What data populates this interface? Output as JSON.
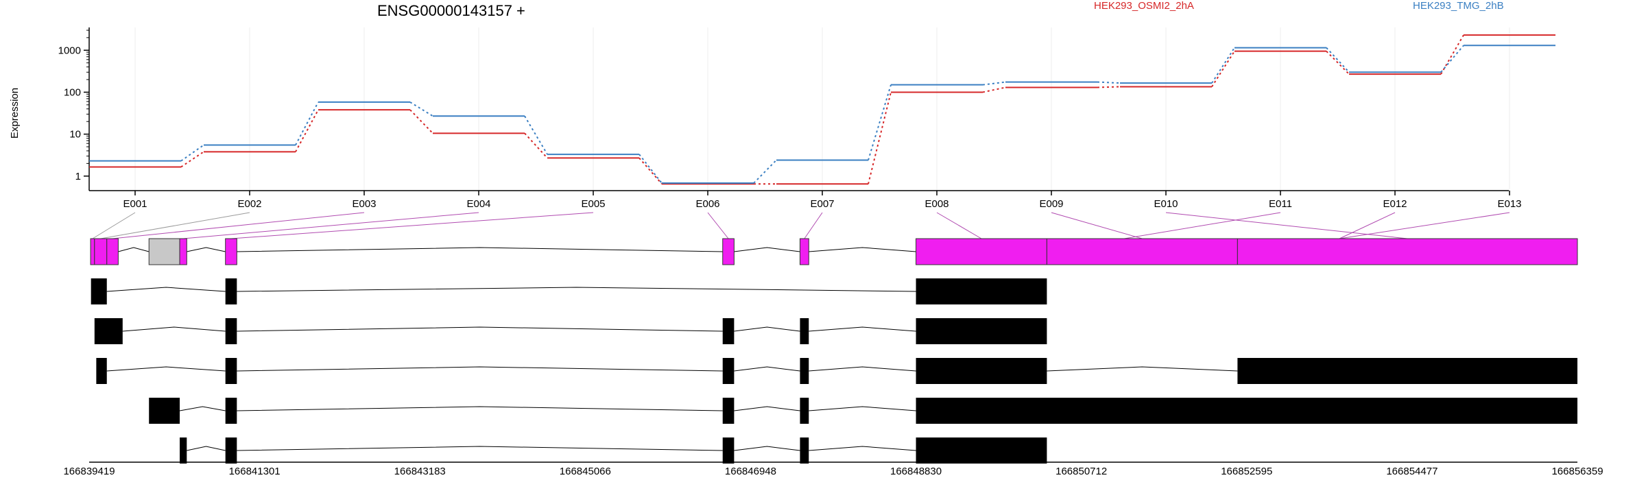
{
  "chart_data": {
    "type": "line",
    "title": "ENSG00000143157 +",
    "ylabel": "Expression",
    "y_scale": "log",
    "y_ticks": [
      1,
      10,
      100,
      1000
    ],
    "y_tick_labels": [
      "1",
      "10",
      "100",
      "1000"
    ],
    "ylim": [
      0.45,
      3500
    ],
    "categories": [
      "E001",
      "E002",
      "E003",
      "E004",
      "E005",
      "E006",
      "E007",
      "E008",
      "E009",
      "E010",
      "E011",
      "E012",
      "E013"
    ],
    "series": [
      {
        "name": "HEK293_OSMI2_2hA",
        "color": "#d62728",
        "values": [
          1.65,
          3.8,
          38,
          10.5,
          2.7,
          0.65,
          0.65,
          100,
          130,
          135,
          950,
          270,
          2300
        ]
      },
      {
        "name": "HEK293_TMG_2hB",
        "color": "#3a7fc2",
        "values": [
          2.3,
          5.5,
          58,
          27,
          3.3,
          0.68,
          2.4,
          150,
          175,
          165,
          1150,
          300,
          1300
        ]
      }
    ],
    "genomic_axis_ticks": [
      "166839419",
      "166841301",
      "166843183",
      "166845066",
      "166846948",
      "166848830",
      "166850712",
      "166852595",
      "166854477",
      "166856359"
    ],
    "genomic_range": [
      166839419,
      166856359
    ],
    "exon_colors": {
      "counted": "#f01ef0",
      "excluded": "#c8c8c8",
      "transcript": "#000000"
    },
    "gene_model_exons": [
      {
        "id": "E001",
        "start": 166839435,
        "end": 166839480,
        "counted": true
      },
      {
        "id": "E002",
        "start": 166839480,
        "end": 166839620,
        "counted": true
      },
      {
        "id": "E003",
        "start": 166839620,
        "end": 166839750,
        "counted": true
      },
      {
        "id": "excl1",
        "start": 166840100,
        "end": 166840450,
        "counted": false
      },
      {
        "id": "E004",
        "start": 166840450,
        "end": 166840530,
        "counted": true
      },
      {
        "id": "E005",
        "start": 166840970,
        "end": 166841100,
        "counted": true
      },
      {
        "id": "E006",
        "start": 166846630,
        "end": 166846760,
        "counted": true
      },
      {
        "id": "E007",
        "start": 166847510,
        "end": 166847610,
        "counted": true
      },
      {
        "id": "E008",
        "start": 166848830,
        "end": 166850320,
        "counted": true
      },
      {
        "id": "E009",
        "start": 166850320,
        "end": 166852490,
        "counted": true
      },
      {
        "id": "E010",
        "start": 166852490,
        "end": 166856359,
        "counted": true
      }
    ],
    "transcripts": [
      [
        [
          166839440,
          166839620
        ],
        [
          166840970,
          166841100
        ],
        [
          166848830,
          166850320
        ]
      ],
      [
        [
          166839480,
          166839800
        ],
        [
          166840970,
          166841100
        ],
        [
          166846630,
          166846760
        ],
        [
          166847510,
          166847610
        ],
        [
          166848830,
          166850320
        ]
      ],
      [
        [
          166839500,
          166839620
        ],
        [
          166840970,
          166841100
        ],
        [
          166846630,
          166846760
        ],
        [
          166847510,
          166847610
        ],
        [
          166848830,
          166850320
        ],
        [
          166852490,
          166856359
        ]
      ],
      [
        [
          166840100,
          166840450
        ],
        [
          166840970,
          166841100
        ],
        [
          166846630,
          166846760
        ],
        [
          166847510,
          166847610
        ],
        [
          166848830,
          166856359
        ]
      ],
      [
        [
          166840450,
          166840530
        ],
        [
          166840970,
          166841100
        ],
        [
          166846630,
          166846760
        ],
        [
          166847510,
          166847610
        ],
        [
          166848830,
          166850320
        ]
      ]
    ]
  }
}
